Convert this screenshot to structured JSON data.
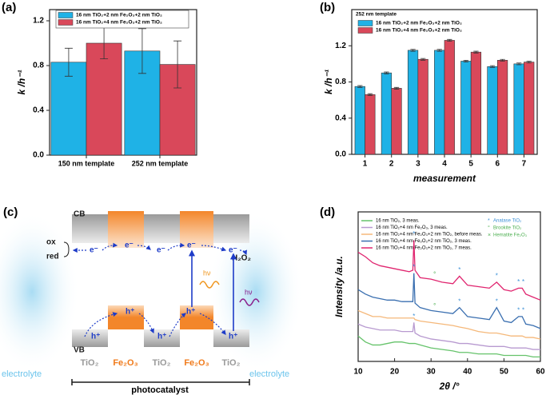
{
  "chart_data": [
    {
      "type": "bar",
      "panel_label": "(a)",
      "ylabel": "k /h⁻¹",
      "categories": [
        "150 nm template",
        "252 nm template"
      ],
      "series": [
        {
          "name": "16 nm TiO₂+2 nm Fe₂O₃+2 nm TiO₂",
          "color": "#1fb2e6",
          "values": [
            0.83,
            0.93
          ],
          "errors": [
            0.125,
            0.2
          ]
        },
        {
          "name": "16 nm TiO₂+4 nm Fe₂O₃+2 nm TiO₂",
          "color": "#d9485a",
          "values": [
            1.0,
            0.81
          ],
          "errors": [
            0.14,
            0.21
          ]
        }
      ],
      "ylim": [
        0,
        1.3
      ],
      "yticks": [
        {
          "value": 0,
          "label": "0.0"
        },
        {
          "value": 0.4,
          "label": "0.4"
        },
        {
          "value": 0.8,
          "label": "0.8"
        },
        {
          "value": 1.2,
          "label": "1.2"
        }
      ],
      "legend": "upper center"
    },
    {
      "type": "bar",
      "panel_label": "(b)",
      "ylabel": "k /h⁻¹",
      "xlabel": "measurement",
      "legend_title": "252 nm template",
      "categories": [
        "1",
        "2",
        "3",
        "4",
        "5",
        "6",
        "7"
      ],
      "series": [
        {
          "name": "16 nm TiO₂+2 nm Fe₂O₃+2 nm TiO₂",
          "color": "#1fb2e6",
          "values": [
            0.75,
            0.9,
            1.15,
            1.15,
            1.03,
            0.97,
            1.0
          ],
          "errors": [
            0.01,
            0.01,
            0.01,
            0.01,
            0.01,
            0.01,
            0.01
          ]
        },
        {
          "name": "16 nm TiO₂+4 nm Fe₂O₃+2 nm TiO₂",
          "color": "#d9485a",
          "values": [
            0.66,
            0.73,
            1.05,
            1.26,
            1.13,
            1.04,
            1.02
          ],
          "errors": [
            0.01,
            0.01,
            0.01,
            0.01,
            0.01,
            0.01,
            0.01
          ]
        }
      ],
      "ylim": [
        0,
        1.6
      ],
      "yticks": [
        {
          "value": 0,
          "label": "0.0"
        },
        {
          "value": 0.4,
          "label": "0.4"
        },
        {
          "value": 0.8,
          "label": "0.8"
        },
        {
          "value": 1.2,
          "label": "1.2"
        }
      ],
      "legend": "upper left"
    },
    {
      "type": "line",
      "panel_label": "(d)",
      "xlabel": "2θ /°",
      "ylabel": "Intensity /a.u.",
      "x": [
        10,
        12,
        14,
        16,
        18,
        20,
        22,
        24,
        25,
        25.3,
        25.6,
        27,
        30,
        33,
        36,
        37.8,
        40,
        43,
        46,
        48,
        50,
        52,
        54,
        55,
        56,
        58,
        60
      ],
      "series": [
        {
          "name": "16 nm TiO₂, 3 meas.",
          "color": "#66c36b",
          "values": [
            17,
            13,
            11,
            11,
            12,
            13,
            13,
            12,
            12,
            12,
            12,
            11,
            9,
            8,
            7,
            6,
            6,
            5,
            5,
            5,
            4,
            4,
            4,
            4,
            4,
            3,
            3
          ]
        },
        {
          "name": "16 nm TiO₂+4 nm Fe₂O₃, 3 meas.",
          "color": "#b89ad0",
          "values": [
            25,
            23,
            22,
            21,
            21,
            21,
            20,
            20,
            20,
            26,
            19,
            17,
            15,
            14,
            13,
            12,
            12,
            11,
            10,
            10,
            10,
            9,
            9,
            9,
            9,
            8,
            8
          ]
        },
        {
          "name": "16 nm TiO₂+4 nm Fe₂O₃+2 nm TiO₂, before meas.",
          "color": "#f5b87a",
          "values": [
            34,
            32,
            30,
            30,
            29,
            29,
            29,
            29,
            29,
            29,
            28,
            27,
            26,
            25,
            24,
            23,
            22,
            20,
            19,
            19,
            18,
            17,
            17,
            17,
            16,
            16,
            15
          ]
        },
        {
          "name": "16 nm TiO₂+4 nm Fe₂O₃+2 nm TiO₂, 3 meas.",
          "color": "#3a6fb0",
          "values": [
            48,
            45,
            43,
            42,
            41,
            41,
            40,
            40,
            40,
            59,
            39,
            36,
            34,
            33,
            32,
            36,
            30,
            29,
            28,
            36,
            27,
            26,
            30,
            30,
            25,
            24,
            22
          ]
        },
        {
          "name": "16 nm TiO₂+4 nm Fe₂O₃+2 nm TiO₂, 7 meas.",
          "color": "#e0256f",
          "values": [
            73,
            70,
            66,
            64,
            63,
            62,
            61,
            60,
            61,
            81,
            61,
            56,
            55,
            53,
            52,
            57,
            51,
            50,
            49,
            53,
            48,
            47,
            49,
            49,
            45,
            43,
            41
          ]
        }
      ],
      "xlim": [
        10,
        60
      ],
      "xticks": [
        10,
        20,
        30,
        40,
        50,
        60
      ],
      "ylim": [
        0,
        100
      ],
      "annotations": [
        {
          "label": "*",
          "x": 25.3,
          "y": 85,
          "color": "#3a8fd6"
        },
        {
          "label": "°",
          "x": 31,
          "y": 58,
          "color": "#4caf50"
        },
        {
          "label": "*",
          "x": 37.8,
          "y": 61,
          "color": "#3a8fd6"
        },
        {
          "label": "*",
          "x": 48,
          "y": 57,
          "color": "#3a8fd6"
        },
        {
          "label": "*",
          "x": 54,
          "y": 53,
          "color": "#3a8fd6"
        },
        {
          "label": "*",
          "x": 55.3,
          "y": 53,
          "color": "#3a8fd6"
        },
        {
          "label": "*",
          "x": 25.3,
          "y": 63,
          "color": "#3a8fd6"
        },
        {
          "label": "°",
          "x": 31,
          "y": 37,
          "color": "#4caf50"
        },
        {
          "label": "*",
          "x": 37.8,
          "y": 40,
          "color": "#3a8fd6"
        },
        {
          "label": "*",
          "x": 48,
          "y": 40,
          "color": "#3a8fd6"
        },
        {
          "label": "*",
          "x": 54,
          "y": 34,
          "color": "#3a8fd6"
        },
        {
          "label": "*",
          "x": 55.3,
          "y": 34,
          "color": "#3a8fd6"
        },
        {
          "label": "*",
          "x": 25.3,
          "y": 30,
          "color": "#3a8fd6"
        }
      ],
      "marker_key": [
        {
          "symbol": "*",
          "label": "Anatase TiO₂",
          "color": "#3a8fd6"
        },
        {
          "symbol": "°",
          "label": "Brookite TiO₂",
          "color": "#4caf50"
        },
        {
          "symbol": "×",
          "label": "Hematite Fe₂O₃",
          "color": "#4caf50"
        }
      ],
      "legend": "upper left"
    }
  ],
  "diagram": {
    "panel_label": "(c)",
    "cb": "CB",
    "vb": "VB",
    "ox": "ox",
    "red": "red",
    "product": "H₂O₂",
    "electron": "e⁻",
    "hole": "h⁺",
    "photon": "hν",
    "layers": [
      "TiO₂",
      "Fe₂O₃",
      "TiO₂",
      "Fe₂O₃",
      "TiO₂"
    ],
    "electrolyte": "electrolyte",
    "photocatalyst": "photocatalyst"
  }
}
